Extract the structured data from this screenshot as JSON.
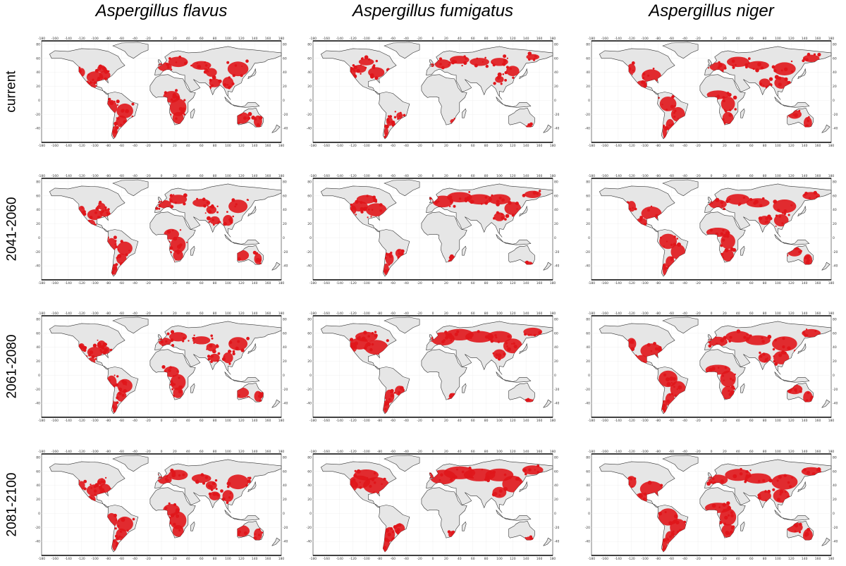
{
  "columns": [
    "Aspergillus flavus",
    "Aspergillus fumigatus",
    "Aspergillus niger"
  ],
  "rows": [
    "current",
    "2041-2060",
    "2061-2080",
    "2081-2100"
  ],
  "map": {
    "lon_ticks": [
      -180,
      -160,
      -140,
      -120,
      -100,
      -80,
      -60,
      -40,
      -20,
      0,
      20,
      40,
      60,
      80,
      100,
      120,
      140,
      160,
      180
    ],
    "lat_ticks": [
      80,
      60,
      40,
      20,
      0,
      -20,
      -40
    ],
    "land_color": "#e6e6e6",
    "coast_color": "#333333",
    "suitable_color": "#e0161b"
  },
  "suitability": {
    "Aspergillus flavus": [
      0.55,
      0.45,
      0.45,
      0.55
    ],
    "Aspergillus fumigatus": [
      0.3,
      0.55,
      0.7,
      0.85
    ],
    "Aspergillus niger": [
      0.55,
      0.6,
      0.7,
      0.75
    ]
  }
}
